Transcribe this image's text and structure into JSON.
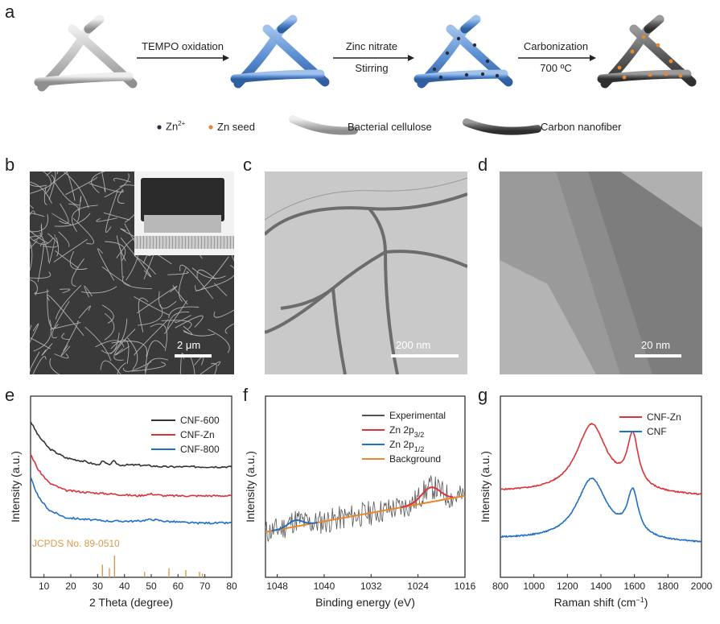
{
  "panels": {
    "a": "a",
    "b": "b",
    "c": "c",
    "d": "d",
    "e": "e",
    "f": "f",
    "g": "g"
  },
  "schematic": {
    "step1": "TEMPO oxidation",
    "step2_top": "Zinc nitrate",
    "step2_bottom": "Stirring",
    "step3_top": "Carbonization",
    "step3_bottom": "700 ºC",
    "legend": {
      "zn_ion": "Zn",
      "zn_ion_sup": "2+",
      "zn_seed": "Zn seed",
      "bacterial_cellulose": "Bacterial cellulose",
      "carbon_nanofiber": "Carbon nanofiber"
    }
  },
  "micrographs": {
    "b_scale": "2 μm",
    "c_scale": "200 nm",
    "d_scale": "20 nm"
  },
  "chart_data": [
    {
      "panel": "e",
      "type": "line",
      "xlabel": "2 Theta (degree)",
      "ylabel": "Intensity (a.u.)",
      "xlim": [
        5,
        80
      ],
      "x_ticks": [
        "10",
        "20",
        "30",
        "40",
        "50",
        "60",
        "70",
        "80"
      ],
      "legend_position": "top-right",
      "series": [
        {
          "name": "CNF-600",
          "color": "#333333",
          "x": [
            5,
            8,
            12,
            18,
            25,
            30,
            32,
            34,
            36,
            38,
            45,
            55,
            65,
            80
          ],
          "y": [
            0.86,
            0.78,
            0.71,
            0.66,
            0.64,
            0.62,
            0.64,
            0.62,
            0.64,
            0.62,
            0.62,
            0.61,
            0.61,
            0.61
          ]
        },
        {
          "name": "CNF-Zn",
          "color": "#d9343a",
          "x": [
            5,
            8,
            12,
            18,
            25,
            35,
            45,
            50,
            55,
            65,
            80
          ],
          "y": [
            0.68,
            0.59,
            0.52,
            0.48,
            0.47,
            0.46,
            0.45,
            0.46,
            0.45,
            0.45,
            0.45
          ]
        },
        {
          "name": "CNF-800",
          "color": "#1f6fc5",
          "x": [
            5,
            8,
            12,
            18,
            25,
            35,
            45,
            50,
            55,
            65,
            80
          ],
          "y": [
            0.55,
            0.44,
            0.37,
            0.33,
            0.32,
            0.31,
            0.31,
            0.32,
            0.31,
            0.3,
            0.3
          ]
        }
      ],
      "reference": {
        "label": "JCPDS No. 89-0510",
        "color": "#d99a4e",
        "peaks": [
          {
            "x": 31.8,
            "h": 0.07
          },
          {
            "x": 34.4,
            "h": 0.05
          },
          {
            "x": 36.3,
            "h": 0.12
          },
          {
            "x": 47.5,
            "h": 0.03
          },
          {
            "x": 56.6,
            "h": 0.05
          },
          {
            "x": 62.9,
            "h": 0.04
          },
          {
            "x": 68.0,
            "h": 0.03
          },
          {
            "x": 69.1,
            "h": 0.02
          }
        ]
      }
    },
    {
      "panel": "f",
      "type": "line",
      "xlabel": "Binding energy (eV)",
      "ylabel": "Intensity (a.u.)",
      "xlim": [
        1050,
        1016
      ],
      "x_ticks": [
        "1048",
        "1040",
        "1032",
        "1024",
        "1016"
      ],
      "legend_position": "top-right",
      "series": [
        {
          "name": "Experimental",
          "color": "#555555",
          "noisy": true
        },
        {
          "name": "Zn 2p",
          "name_sub": "3/2",
          "color": "#d9343a",
          "peak_x": 1021.8,
          "peak_h": 0.08
        },
        {
          "name": "Zn 2p",
          "name_sub": "1/2",
          "color": "#1f6fc5",
          "peak_x": 1044.9,
          "peak_h": 0.035
        },
        {
          "name": "Background",
          "color": "#e8872c",
          "x": [
            1050,
            1016
          ],
          "y": [
            0.25,
            0.45
          ]
        }
      ]
    },
    {
      "panel": "g",
      "type": "line",
      "xlabel": "Raman shift (cm",
      "xlabel_sup": "−1",
      "xlabel_end": ")",
      "ylabel": "Intensity (a.u.)",
      "xlim": [
        800,
        2000
      ],
      "x_ticks": [
        "800",
        "1000",
        "1200",
        "1400",
        "1600",
        "1800",
        "2000"
      ],
      "legend_position": "top-right",
      "series": [
        {
          "name": "CNF-Zn",
          "color": "#d9343a",
          "base": 0.47,
          "d_peak": 0.38,
          "g_peak": 0.42
        },
        {
          "name": "CNF",
          "color": "#1f6fc5",
          "base": 0.21,
          "d_peak": 0.34,
          "g_peak": 0.36
        }
      ]
    }
  ]
}
